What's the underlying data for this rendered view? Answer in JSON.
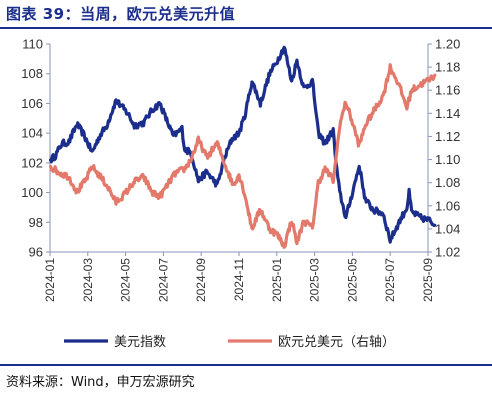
{
  "title": "图表 39：当周，欧元兑美元升值",
  "source": "资料来源：Wind，申万宏源研究",
  "chart_data": {
    "type": "line",
    "x_ticks": [
      "2024-01",
      "2024-03",
      "2024-05",
      "2024-07",
      "2024-09",
      "2024-11",
      "2025-01",
      "2025-03",
      "2025-05",
      "2025-07",
      "2025-09"
    ],
    "x_range": [
      "2024-01",
      "2025-09"
    ],
    "y_left": {
      "ylim": [
        96,
        110
      ],
      "ticks": [
        "96",
        "98",
        "100",
        "102",
        "104",
        "106",
        "108",
        "110"
      ]
    },
    "y_right": {
      "ylim": [
        1.02,
        1.2
      ],
      "ticks": [
        "1.02",
        "1.04",
        "1.06",
        "1.08",
        "1.10",
        "1.12",
        "1.14",
        "1.16",
        "1.18",
        "1.20"
      ]
    },
    "series": [
      {
        "name": "美元指数",
        "axis": "left",
        "color": "#1c2e8c",
        "points": [
          [
            "2024-01-02",
            102.2
          ],
          [
            "2024-01-10",
            102.5
          ],
          [
            "2024-01-20",
            103.3
          ],
          [
            "2024-02-01",
            103.4
          ],
          [
            "2024-02-14",
            104.6
          ],
          [
            "2024-02-25",
            103.9
          ],
          [
            "2024-03-08",
            102.7
          ],
          [
            "2024-03-20",
            103.8
          ],
          [
            "2024-04-01",
            104.5
          ],
          [
            "2024-04-16",
            106.2
          ],
          [
            "2024-04-25",
            105.8
          ],
          [
            "2024-05-05",
            105.3
          ],
          [
            "2024-05-15",
            104.5
          ],
          [
            "2024-05-30",
            104.7
          ],
          [
            "2024-06-14",
            105.6
          ],
          [
            "2024-06-26",
            106.0
          ],
          [
            "2024-07-05",
            105.0
          ],
          [
            "2024-07-17",
            103.8
          ],
          [
            "2024-07-31",
            104.3
          ],
          [
            "2024-08-05",
            102.9
          ],
          [
            "2024-08-15",
            102.7
          ],
          [
            "2024-08-27",
            100.8
          ],
          [
            "2024-09-10",
            101.4
          ],
          [
            "2024-09-27",
            100.5
          ],
          [
            "2024-10-08",
            102.3
          ],
          [
            "2024-10-20",
            103.6
          ],
          [
            "2024-11-01",
            104.0
          ],
          [
            "2024-11-10",
            105.1
          ],
          [
            "2024-11-22",
            107.5
          ],
          [
            "2024-12-05",
            106.0
          ],
          [
            "2024-12-20",
            108.0
          ],
          [
            "2025-01-02",
            108.9
          ],
          [
            "2025-01-13",
            109.8
          ],
          [
            "2025-01-25",
            107.5
          ],
          [
            "2025-02-03",
            108.9
          ],
          [
            "2025-02-14",
            107.0
          ],
          [
            "2025-02-28",
            107.5
          ],
          [
            "2025-03-07",
            104.0
          ],
          [
            "2025-03-18",
            103.3
          ],
          [
            "2025-03-31",
            104.2
          ],
          [
            "2025-04-05",
            102.0
          ],
          [
            "2025-04-11",
            100.0
          ],
          [
            "2025-04-21",
            98.3
          ],
          [
            "2025-05-01",
            100.0
          ],
          [
            "2025-05-12",
            101.8
          ],
          [
            "2025-05-22",
            99.5
          ],
          [
            "2025-06-05",
            98.8
          ],
          [
            "2025-06-20",
            98.6
          ],
          [
            "2025-07-01",
            96.8
          ],
          [
            "2025-07-14",
            97.9
          ],
          [
            "2025-07-28",
            99.0
          ],
          [
            "2025-08-01",
            100.0
          ],
          [
            "2025-08-05",
            98.7
          ],
          [
            "2025-08-20",
            98.3
          ],
          [
            "2025-09-05",
            98.1
          ],
          [
            "2025-09-12",
            97.8
          ]
        ]
      },
      {
        "name": "欧元兑美元（右轴）",
        "axis": "right",
        "color": "#e2796b",
        "points": [
          [
            "2024-01-02",
            1.094
          ],
          [
            "2024-01-15",
            1.089
          ],
          [
            "2024-02-01",
            1.085
          ],
          [
            "2024-02-14",
            1.072
          ],
          [
            "2024-02-28",
            1.082
          ],
          [
            "2024-03-08",
            1.094
          ],
          [
            "2024-03-20",
            1.086
          ],
          [
            "2024-04-01",
            1.078
          ],
          [
            "2024-04-16",
            1.063
          ],
          [
            "2024-04-30",
            1.07
          ],
          [
            "2024-05-15",
            1.081
          ],
          [
            "2024-05-30",
            1.085
          ],
          [
            "2024-06-14",
            1.071
          ],
          [
            "2024-06-26",
            1.068
          ],
          [
            "2024-07-10",
            1.08
          ],
          [
            "2024-07-20",
            1.088
          ],
          [
            "2024-08-05",
            1.092
          ],
          [
            "2024-08-15",
            1.1
          ],
          [
            "2024-08-27",
            1.117
          ],
          [
            "2024-09-10",
            1.102
          ],
          [
            "2024-09-27",
            1.114
          ],
          [
            "2024-10-10",
            1.094
          ],
          [
            "2024-10-22",
            1.078
          ],
          [
            "2024-11-01",
            1.087
          ],
          [
            "2024-11-10",
            1.071
          ],
          [
            "2024-11-22",
            1.04
          ],
          [
            "2024-12-05",
            1.057
          ],
          [
            "2024-12-20",
            1.04
          ],
          [
            "2025-01-02",
            1.035
          ],
          [
            "2025-01-13",
            1.025
          ],
          [
            "2025-01-25",
            1.048
          ],
          [
            "2025-02-03",
            1.028
          ],
          [
            "2025-02-14",
            1.047
          ],
          [
            "2025-02-28",
            1.041
          ],
          [
            "2025-03-07",
            1.08
          ],
          [
            "2025-03-18",
            1.092
          ],
          [
            "2025-03-31",
            1.082
          ],
          [
            "2025-04-05",
            1.1
          ],
          [
            "2025-04-11",
            1.13
          ],
          [
            "2025-04-21",
            1.15
          ],
          [
            "2025-05-01",
            1.132
          ],
          [
            "2025-05-12",
            1.112
          ],
          [
            "2025-05-22",
            1.13
          ],
          [
            "2025-06-05",
            1.142
          ],
          [
            "2025-06-20",
            1.155
          ],
          [
            "2025-07-01",
            1.18
          ],
          [
            "2025-07-14",
            1.166
          ],
          [
            "2025-07-28",
            1.145
          ],
          [
            "2025-08-05",
            1.16
          ],
          [
            "2025-08-20",
            1.165
          ],
          [
            "2025-09-05",
            1.17
          ],
          [
            "2025-09-12",
            1.173
          ]
        ]
      }
    ],
    "legend_position": "bottom",
    "grid": false
  }
}
